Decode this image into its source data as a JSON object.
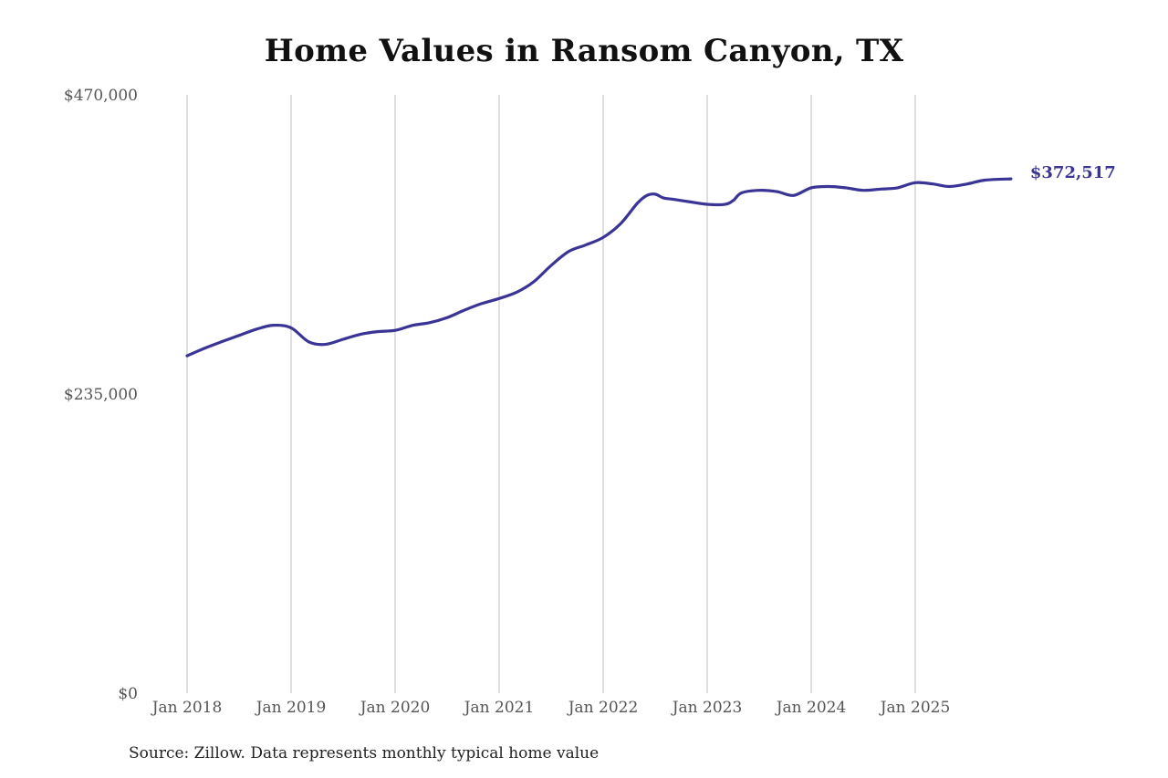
{
  "chart_data": {
    "type": "line",
    "title": "Home Values in Ransom Canyon, TX",
    "xlabel": "",
    "ylabel": "",
    "ylim": [
      0,
      470000
    ],
    "y_ticks": [
      {
        "value": 470000,
        "label": "$470,000"
      },
      {
        "value": 235000,
        "label": "$235,000"
      },
      {
        "value": 0,
        "label": "$0"
      }
    ],
    "x_ticks": [
      {
        "value": 2018.0,
        "label": "Jan 2018"
      },
      {
        "value": 2019.0,
        "label": "Jan 2019"
      },
      {
        "value": 2020.0,
        "label": "Jan 2020"
      },
      {
        "value": 2021.0,
        "label": "Jan 2021"
      },
      {
        "value": 2022.0,
        "label": "Jan 2022"
      },
      {
        "value": 2023.0,
        "label": "Jan 2023"
      },
      {
        "value": 2024.0,
        "label": "Jan 2024"
      },
      {
        "value": 2025.0,
        "label": "Jan 2025"
      }
    ],
    "vertical_grid": true,
    "line_color": "#3a3496",
    "end_label": "$372,517",
    "series": [
      {
        "x": [
          2018.0,
          2018.17,
          2018.33,
          2018.5,
          2018.67,
          2018.83,
          2019.0,
          2019.17,
          2019.33,
          2019.5,
          2019.67,
          2019.83,
          2020.0,
          2020.17,
          2020.33,
          2020.5,
          2020.67,
          2020.83,
          2021.0,
          2021.17,
          2021.33,
          2021.5,
          2021.67,
          2021.83,
          2022.0,
          2022.17,
          2022.33,
          2022.42,
          2022.5,
          2022.58,
          2022.67,
          2022.83,
          2023.0,
          2023.17,
          2023.25,
          2023.33,
          2023.5,
          2023.67,
          2023.83,
          2024.0,
          2024.17,
          2024.33,
          2024.5,
          2024.67,
          2024.83,
          2025.0,
          2025.17,
          2025.33,
          2025.5,
          2025.67,
          2025.92
        ],
        "values": [
          265000,
          271000,
          276000,
          281000,
          286000,
          289000,
          287000,
          276000,
          274000,
          278000,
          282000,
          284000,
          285000,
          289000,
          291000,
          295000,
          301000,
          306000,
          310000,
          315000,
          323000,
          336000,
          347000,
          352000,
          358000,
          369000,
          385000,
          391000,
          392000,
          389000,
          388000,
          386000,
          384000,
          384000,
          387000,
          393000,
          395000,
          394000,
          391000,
          397000,
          398000,
          397000,
          395000,
          396000,
          397000,
          401000,
          400000,
          398000,
          400000,
          403000,
          372517
        ],
        "values_note_free": true
      }
    ]
  },
  "footer": {
    "source": "Source: Zillow. Data represents monthly typical home value"
  }
}
